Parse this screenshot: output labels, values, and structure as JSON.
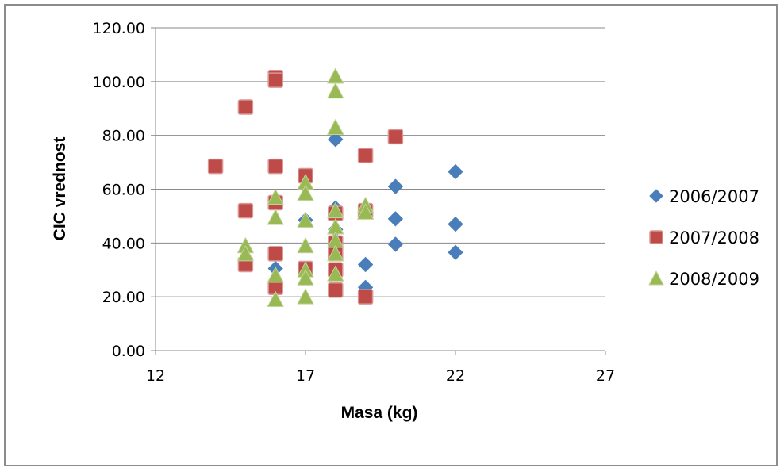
{
  "chart_data": {
    "type": "scatter",
    "title": "",
    "xlabel": "Masa (kg)",
    "ylabel": "CIC vrednost",
    "xlim": [
      12,
      27
    ],
    "ylim": [
      0,
      120
    ],
    "x_ticks": [
      "12",
      "17",
      "22",
      "27"
    ],
    "y_ticks": [
      "0.00",
      "20.00",
      "40.00",
      "60.00",
      "80.00",
      "100.00",
      "120.00"
    ],
    "grid": "horizontal",
    "legend_position": "right",
    "series": [
      {
        "name": "2006/2007",
        "marker": "diamond",
        "color": "#4a7ebb",
        "points": [
          [
            16,
            30.5
          ],
          [
            17,
            48.5
          ],
          [
            18,
            78.5
          ],
          [
            18,
            53
          ],
          [
            18,
            45
          ],
          [
            19,
            32
          ],
          [
            19,
            23.5
          ],
          [
            20,
            61
          ],
          [
            20,
            49
          ],
          [
            20,
            39.5
          ],
          [
            22,
            66.5
          ],
          [
            22,
            47
          ],
          [
            22,
            36.5
          ]
        ]
      },
      {
        "name": "2007/2008",
        "marker": "square",
        "color": "#be4b48",
        "points": [
          [
            14,
            68.5
          ],
          [
            15,
            90.5
          ],
          [
            15,
            52
          ],
          [
            15,
            32
          ],
          [
            16,
            101.5
          ],
          [
            16,
            100.5
          ],
          [
            16,
            68.5
          ],
          [
            16,
            55
          ],
          [
            16,
            36
          ],
          [
            16,
            23.5
          ],
          [
            17,
            65
          ],
          [
            17,
            30.5
          ],
          [
            18,
            51
          ],
          [
            18,
            40
          ],
          [
            18,
            36
          ],
          [
            18,
            30
          ],
          [
            18,
            22.5
          ],
          [
            19,
            72.5
          ],
          [
            19,
            52
          ],
          [
            19,
            20
          ],
          [
            20,
            79.5
          ]
        ]
      },
      {
        "name": "2008/2009",
        "marker": "triangle",
        "color": "#98b954",
        "points": [
          [
            15,
            39
          ],
          [
            15,
            36
          ],
          [
            16,
            57
          ],
          [
            16,
            49.5
          ],
          [
            16,
            28
          ],
          [
            16,
            19
          ],
          [
            17,
            62.5
          ],
          [
            17,
            58.5
          ],
          [
            17,
            48.5
          ],
          [
            17,
            39
          ],
          [
            17,
            30
          ],
          [
            17,
            27
          ],
          [
            17,
            20
          ],
          [
            18,
            102
          ],
          [
            18,
            96.5
          ],
          [
            18,
            83
          ],
          [
            18,
            52
          ],
          [
            18,
            46
          ],
          [
            18,
            41
          ],
          [
            18,
            36
          ],
          [
            18,
            28.5
          ],
          [
            19,
            54
          ],
          [
            19,
            51.5
          ]
        ]
      }
    ]
  }
}
